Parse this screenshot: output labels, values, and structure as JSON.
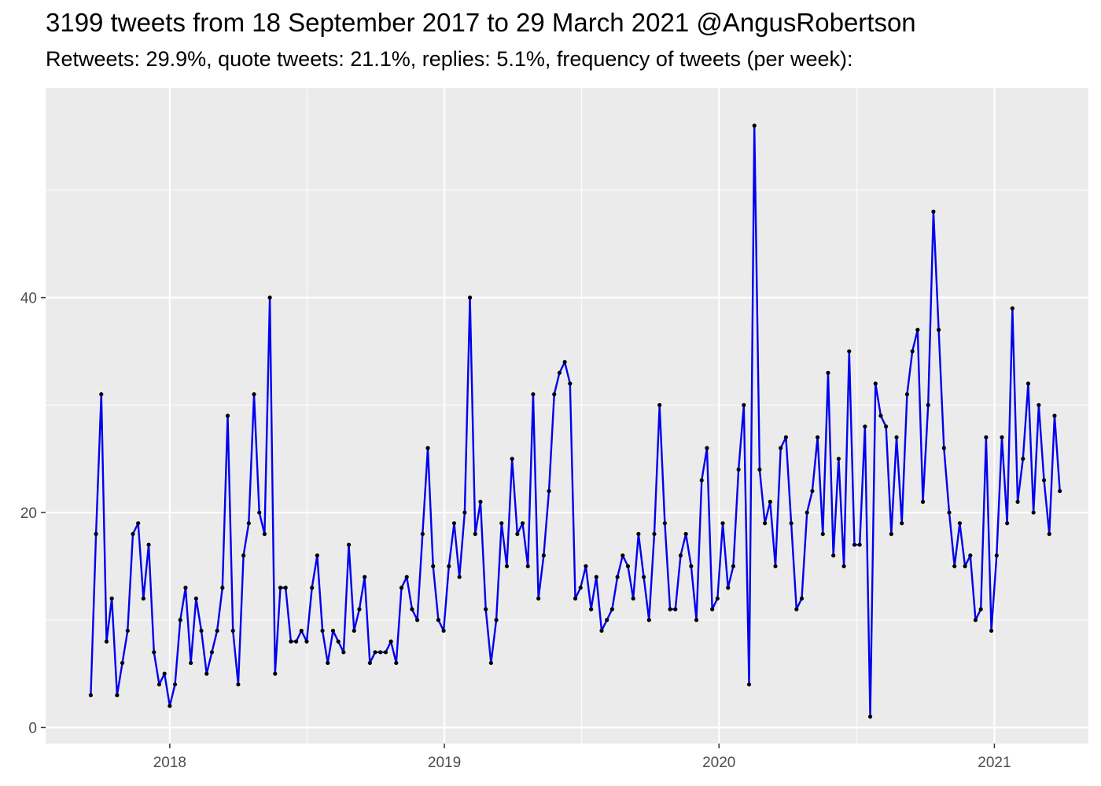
{
  "chart_data": {
    "type": "line",
    "title": "3199 tweets from 18 September 2017 to 29 March 2021 @AngusRobertson",
    "subtitle": "Retweets: 29.9%, quote tweets: 21.1%, replies: 5.1%, frequency of tweets (per week):",
    "xlabel": "",
    "ylabel": "",
    "x_start": "2017-09-18",
    "x_interval_days": 7,
    "xlim": [
      "2017-07-20",
      "2021-05-06"
    ],
    "ylim": [
      -1.5,
      59.5
    ],
    "x_ticks": [
      {
        "label": "2018",
        "date": "2018-01-01"
      },
      {
        "label": "2019",
        "date": "2019-01-01"
      },
      {
        "label": "2020",
        "date": "2020-01-01"
      },
      {
        "label": "2021",
        "date": "2021-01-01"
      }
    ],
    "y_ticks": [
      0,
      20,
      40
    ],
    "y_minor_ticks": [
      10,
      30,
      50
    ],
    "grid": true,
    "line_color": "#0000ee",
    "point_color": "#000000",
    "panel_background": "#ebebeb",
    "series": [
      {
        "values": [
          3,
          18,
          31,
          8,
          12,
          3,
          6,
          9,
          18,
          19,
          12,
          17,
          7,
          4,
          5,
          2,
          4,
          10,
          13,
          6,
          12,
          9,
          5,
          7,
          9,
          13,
          29,
          9,
          4,
          16,
          19,
          31,
          20,
          18,
          40,
          5,
          13,
          13,
          8,
          8,
          9,
          8,
          13,
          16,
          9,
          6,
          9,
          8,
          7,
          17,
          9,
          11,
          14,
          6,
          7,
          7,
          7,
          8,
          6,
          13,
          14,
          11,
          10,
          18,
          26,
          15,
          10,
          9,
          15,
          19,
          14,
          20,
          40,
          18,
          21,
          11,
          6,
          10,
          19,
          15,
          25,
          18,
          19,
          15,
          31,
          12,
          16,
          22,
          31,
          33,
          34,
          32,
          12,
          13,
          15,
          11,
          14,
          9,
          10,
          11,
          14,
          16,
          15,
          12,
          18,
          14,
          10,
          18,
          30,
          19,
          11,
          11,
          16,
          18,
          15,
          10,
          23,
          26,
          11,
          12,
          19,
          13,
          15,
          24,
          30,
          4,
          56,
          24,
          19,
          21,
          15,
          26,
          27,
          19,
          11,
          12,
          20,
          22,
          27,
          18,
          33,
          16,
          25,
          15,
          35,
          17,
          17,
          28,
          1,
          32,
          29,
          28,
          18,
          27,
          19,
          31,
          35,
          37,
          21,
          30,
          48,
          37,
          26,
          20,
          15,
          19,
          15,
          16,
          10,
          11,
          27,
          9,
          16,
          27,
          19,
          39,
          21,
          25,
          32,
          20,
          30,
          23,
          18,
          29,
          22
        ]
      }
    ]
  }
}
